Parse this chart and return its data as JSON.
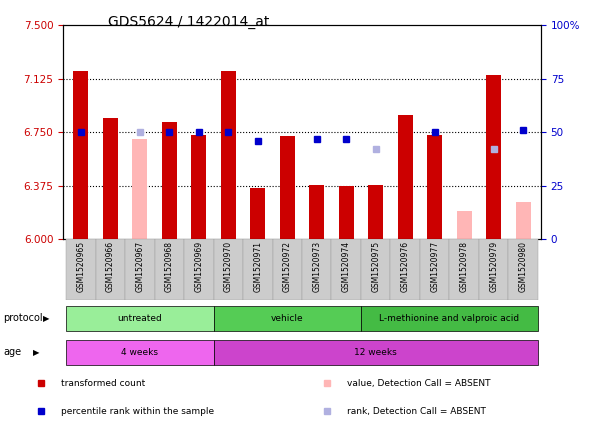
{
  "title": "GDS5624 / 1422014_at",
  "samples": [
    "GSM1520965",
    "GSM1520966",
    "GSM1520967",
    "GSM1520968",
    "GSM1520969",
    "GSM1520970",
    "GSM1520971",
    "GSM1520972",
    "GSM1520973",
    "GSM1520974",
    "GSM1520975",
    "GSM1520976",
    "GSM1520977",
    "GSM1520978",
    "GSM1520979",
    "GSM1520980"
  ],
  "transformed_count": [
    7.18,
    6.85,
    null,
    6.82,
    6.73,
    7.18,
    6.36,
    6.72,
    6.38,
    6.37,
    6.38,
    6.87,
    6.73,
    null,
    7.15,
    null
  ],
  "absent_value": [
    null,
    null,
    6.7,
    null,
    null,
    null,
    null,
    null,
    null,
    null,
    null,
    null,
    null,
    6.2,
    null,
    6.26
  ],
  "percentile_rank": [
    50,
    null,
    null,
    50,
    50,
    50,
    46,
    null,
    47,
    47,
    null,
    null,
    50,
    null,
    null,
    51
  ],
  "absent_rank": [
    null,
    null,
    50,
    null,
    null,
    null,
    null,
    null,
    null,
    null,
    42,
    null,
    null,
    null,
    42,
    null
  ],
  "bar_color_present": "#cc0000",
  "bar_color_absent": "#ffb6b6",
  "rank_color_present": "#0000cc",
  "rank_color_absent": "#b0b0e0",
  "ylim_left": [
    6.0,
    7.5
  ],
  "ylim_right": [
    0,
    100
  ],
  "yticks_left": [
    6.0,
    6.375,
    6.75,
    7.125,
    7.5
  ],
  "yticks_right": [
    0,
    25,
    50,
    75,
    100
  ],
  "yticklabels_right": [
    "0",
    "25",
    "50",
    "75",
    "100%"
  ],
  "hlines": [
    6.375,
    6.75,
    7.125
  ],
  "protocol_groups": [
    {
      "label": "untreated",
      "start": 0,
      "end": 4,
      "color": "#99ee99"
    },
    {
      "label": "vehicle",
      "start": 5,
      "end": 9,
      "color": "#55cc55"
    },
    {
      "label": "L-methionine and valproic acid",
      "start": 10,
      "end": 15,
      "color": "#44bb44"
    }
  ],
  "age_groups": [
    {
      "label": "4 weeks",
      "start": 0,
      "end": 4,
      "color": "#ee66ee"
    },
    {
      "label": "12 weeks",
      "start": 5,
      "end": 15,
      "color": "#cc44cc"
    }
  ],
  "base_value": 6.0,
  "bar_width": 0.5,
  "rank_marker_size": 5,
  "legend_items": [
    {
      "color": "#cc0000",
      "label": "transformed count"
    },
    {
      "color": "#0000cc",
      "label": "percentile rank within the sample"
    },
    {
      "color": "#ffb6b6",
      "label": "value, Detection Call = ABSENT"
    },
    {
      "color": "#b0b0e0",
      "label": "rank, Detection Call = ABSENT"
    }
  ]
}
